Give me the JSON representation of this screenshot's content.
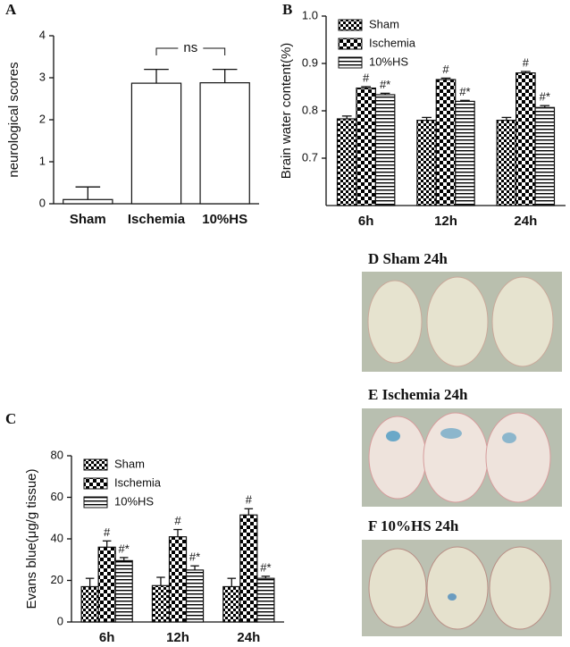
{
  "chart_data": [
    {
      "type": "bar",
      "panel": "A",
      "ylabel": "neurological scores",
      "categories": [
        "Sham",
        "Ischemia",
        "10%HS"
      ],
      "values": [
        0.1,
        2.87,
        2.88
      ],
      "errors": [
        0.3,
        0.33,
        0.32
      ],
      "color": "#ffffff",
      "ylim": [
        0,
        4
      ],
      "yticks": [
        0,
        1,
        2,
        3,
        4
      ],
      "annotation": "ns"
    },
    {
      "type": "bar",
      "panel": "B",
      "ylabel": "Brain water content(%)",
      "categories": [
        "6h",
        "12h",
        "24h"
      ],
      "series": [
        {
          "name": "Sham",
          "color": "#000000",
          "pattern": "checker-small",
          "values": [
            0.783,
            0.78,
            0.78
          ],
          "errors": [
            0.006,
            0.006,
            0.006
          ]
        },
        {
          "name": "Ischemia",
          "color": "#000000",
          "pattern": "checker-large",
          "values": [
            0.848,
            0.866,
            0.88
          ],
          "errors": [
            0.003,
            0.003,
            0.003
          ],
          "annotations": [
            "#",
            "#",
            "#"
          ]
        },
        {
          "name": "10%HS",
          "color": "#000000",
          "pattern": "hlines",
          "values": [
            0.834,
            0.82,
            0.807
          ],
          "errors": [
            0.003,
            0.002,
            0.004
          ],
          "annotations": [
            "#*",
            "#*",
            "#*"
          ]
        }
      ],
      "ylim": [
        0.6,
        1.0
      ],
      "yticks": [
        0.7,
        0.8,
        0.9,
        {
          "value": 1,
          "label": "1.0"
        }
      ],
      "legend": "upper left"
    },
    {
      "type": "bar",
      "panel": "C",
      "ylabel": "Evans blue(μg/g tissue)",
      "categories": [
        "6h",
        "12h",
        "24h"
      ],
      "series": [
        {
          "name": "Sham",
          "color": "#000000",
          "pattern": "checker-small",
          "values": [
            17,
            17.5,
            17
          ],
          "errors": [
            4,
            4,
            4
          ]
        },
        {
          "name": "Ischemia",
          "color": "#000000",
          "pattern": "checker-large",
          "values": [
            36,
            41,
            51.5
          ],
          "errors": [
            3,
            3.5,
            3
          ],
          "annotations": [
            "#",
            "#",
            "#"
          ]
        },
        {
          "name": "10%HS",
          "color": "#000000",
          "pattern": "hlines",
          "values": [
            29.5,
            25,
            21
          ],
          "errors": [
            1.5,
            2,
            1
          ],
          "annotations": [
            "#*",
            "#*",
            "#*"
          ]
        }
      ],
      "ylim": [
        0,
        80
      ],
      "yticks": [
        0,
        20,
        40,
        60,
        80
      ],
      "legend": "upper left"
    }
  ],
  "photos": [
    "D  Sham 24h",
    "E  Ischemia 24h",
    "F  10%HS 24h"
  ]
}
